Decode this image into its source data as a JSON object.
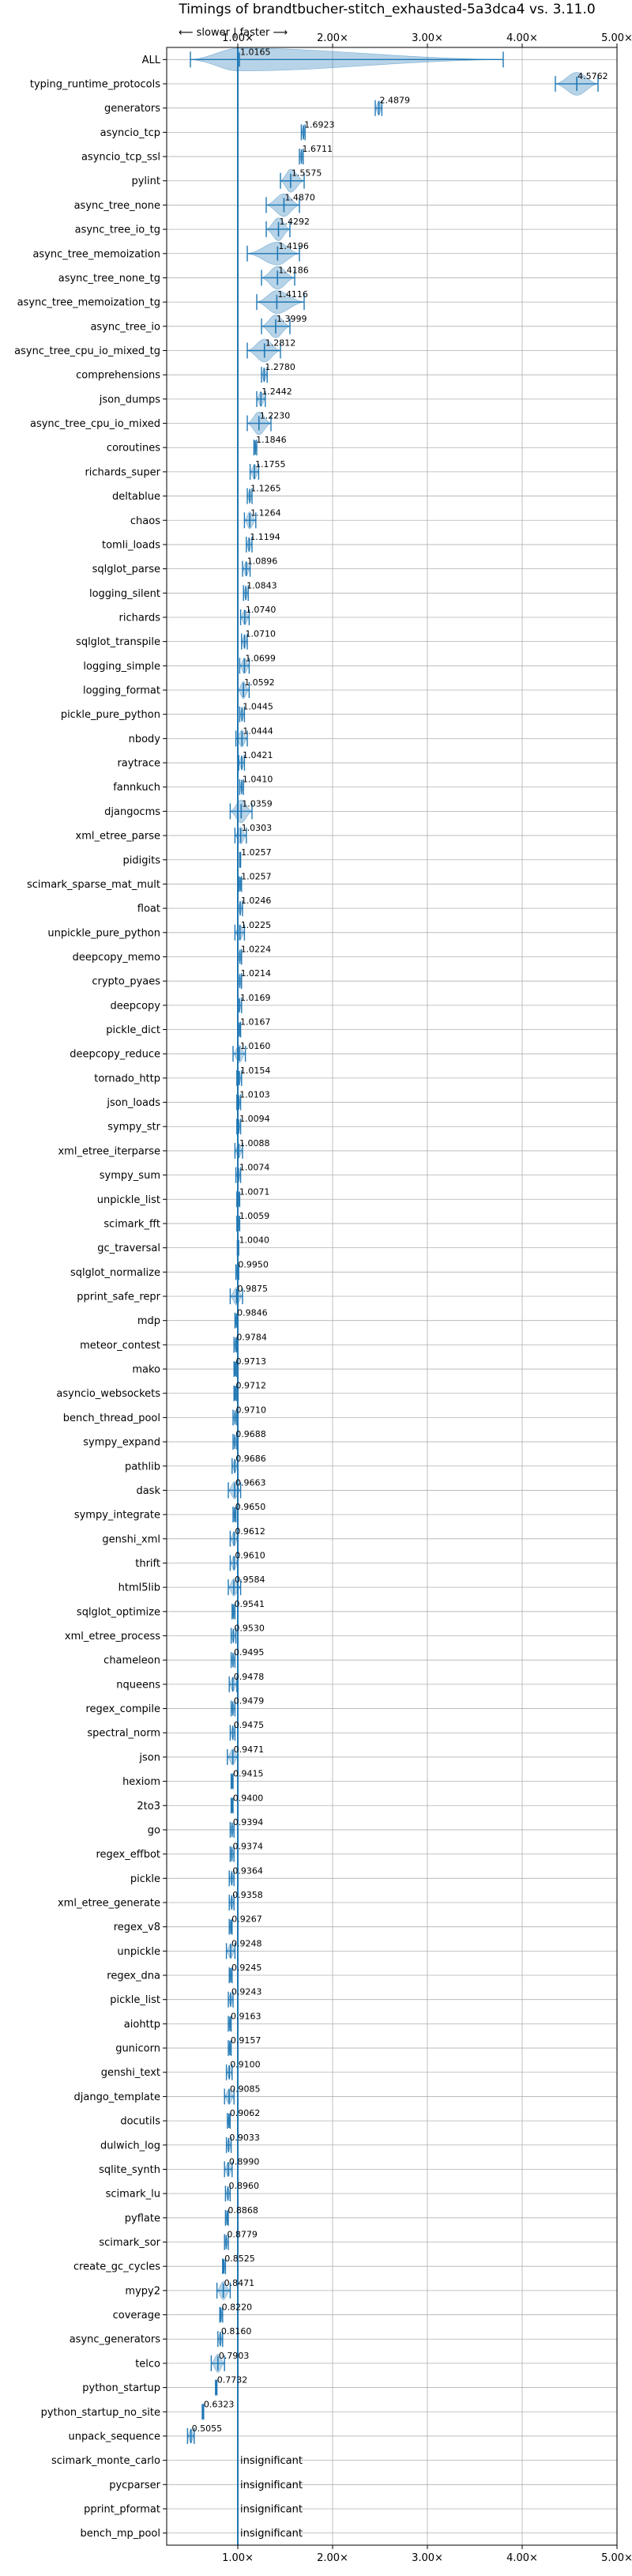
{
  "chart_data": {
    "type": "violin",
    "title": "Timings of brandtbucher-stitch_exhausted-5a3dca4 vs. 3.11.0",
    "direction_label": "⟵ slower | faster ⟶",
    "xlim": [
      0.25,
      5.0
    ],
    "x_ticks": [
      {
        "value": 1,
        "label": "1.00×"
      },
      {
        "value": 2,
        "label": "2.00×"
      },
      {
        "value": 3,
        "label": "3.00×"
      },
      {
        "value": 4,
        "label": "4.00×"
      },
      {
        "value": 5,
        "label": "5.00×"
      }
    ],
    "grid": true,
    "reference_line": 1.0,
    "insignificant_label": "insignificant",
    "series_color": "#1f77b4",
    "benchmarks": [
      {
        "name": "ALL",
        "value": 1.0165,
        "label": "1.0165",
        "spread": [
          0.5,
          3.8
        ]
      },
      {
        "name": "typing_runtime_protocols",
        "value": 4.5762,
        "label": "4.5762",
        "spread": [
          4.35,
          4.8
        ]
      },
      {
        "name": "generators",
        "value": 2.4879,
        "label": "2.4879",
        "spread": [
          2.45,
          2.52
        ]
      },
      {
        "name": "asyncio_tcp",
        "value": 1.6923,
        "label": "1.6923",
        "spread": [
          1.67,
          1.71
        ]
      },
      {
        "name": "asyncio_tcp_ssl",
        "value": 1.6711,
        "label": "1.6711",
        "spread": [
          1.65,
          1.69
        ]
      },
      {
        "name": "pylint",
        "value": 1.5575,
        "label": "1.5575",
        "spread": [
          1.45,
          1.7
        ]
      },
      {
        "name": "async_tree_none",
        "value": 1.487,
        "label": "1.4870",
        "spread": [
          1.3,
          1.65
        ]
      },
      {
        "name": "async_tree_io_tg",
        "value": 1.4292,
        "label": "1.4292",
        "spread": [
          1.3,
          1.55
        ]
      },
      {
        "name": "async_tree_memoization",
        "value": 1.4196,
        "label": "1.4196",
        "spread": [
          1.1,
          1.65
        ]
      },
      {
        "name": "async_tree_none_tg",
        "value": 1.4186,
        "label": "1.4186",
        "spread": [
          1.25,
          1.6
        ]
      },
      {
        "name": "async_tree_memoization_tg",
        "value": 1.4116,
        "label": "1.4116",
        "spread": [
          1.2,
          1.7
        ]
      },
      {
        "name": "async_tree_io",
        "value": 1.3999,
        "label": "1.3999",
        "spread": [
          1.25,
          1.55
        ]
      },
      {
        "name": "async_tree_cpu_io_mixed_tg",
        "value": 1.2812,
        "label": "1.2812",
        "spread": [
          1.1,
          1.45
        ]
      },
      {
        "name": "comprehensions",
        "value": 1.278,
        "label": "1.2780",
        "spread": [
          1.25,
          1.31
        ]
      },
      {
        "name": "json_dumps",
        "value": 1.2442,
        "label": "1.2442",
        "spread": [
          1.2,
          1.29
        ]
      },
      {
        "name": "async_tree_cpu_io_mixed",
        "value": 1.223,
        "label": "1.2230",
        "spread": [
          1.1,
          1.35
        ]
      },
      {
        "name": "coroutines",
        "value": 1.1846,
        "label": "1.1846",
        "spread": [
          1.17,
          1.2
        ]
      },
      {
        "name": "richards_super",
        "value": 1.1755,
        "label": "1.1755",
        "spread": [
          1.13,
          1.22
        ]
      },
      {
        "name": "deltablue",
        "value": 1.1265,
        "label": "1.1265",
        "spread": [
          1.1,
          1.15
        ]
      },
      {
        "name": "chaos",
        "value": 1.1264,
        "label": "1.1264",
        "spread": [
          1.07,
          1.19
        ]
      },
      {
        "name": "tomli_loads",
        "value": 1.1194,
        "label": "1.1194",
        "spread": [
          1.09,
          1.15
        ]
      },
      {
        "name": "sqlglot_parse",
        "value": 1.0896,
        "label": "1.0896",
        "spread": [
          1.05,
          1.13
        ]
      },
      {
        "name": "logging_silent",
        "value": 1.0843,
        "label": "1.0843",
        "spread": [
          1.06,
          1.11
        ]
      },
      {
        "name": "richards",
        "value": 1.074,
        "label": "1.0740",
        "spread": [
          1.03,
          1.12
        ]
      },
      {
        "name": "sqlglot_transpile",
        "value": 1.071,
        "label": "1.0710",
        "spread": [
          1.04,
          1.1
        ]
      },
      {
        "name": "logging_simple",
        "value": 1.0699,
        "label": "1.0699",
        "spread": [
          1.02,
          1.12
        ]
      },
      {
        "name": "logging_format",
        "value": 1.0592,
        "label": "1.0592",
        "spread": [
          1.0,
          1.12
        ]
      },
      {
        "name": "pickle_pure_python",
        "value": 1.0445,
        "label": "1.0445",
        "spread": [
          1.02,
          1.07
        ]
      },
      {
        "name": "nbody",
        "value": 1.0444,
        "label": "1.0444",
        "spread": [
          0.98,
          1.1
        ]
      },
      {
        "name": "raytrace",
        "value": 1.0421,
        "label": "1.0421",
        "spread": [
          1.01,
          1.07
        ]
      },
      {
        "name": "fannkuch",
        "value": 1.041,
        "label": "1.0410",
        "spread": [
          1.02,
          1.06
        ]
      },
      {
        "name": "djangocms",
        "value": 1.0359,
        "label": "1.0359",
        "spread": [
          0.92,
          1.15
        ]
      },
      {
        "name": "xml_etree_parse",
        "value": 1.0303,
        "label": "1.0303",
        "spread": [
          0.97,
          1.09
        ]
      },
      {
        "name": "pidigits",
        "value": 1.0257,
        "label": "1.0257",
        "spread": [
          1.02,
          1.03
        ]
      },
      {
        "name": "scimark_sparse_mat_mult",
        "value": 1.0257,
        "label": "1.0257",
        "spread": [
          1.01,
          1.04
        ]
      },
      {
        "name": "float",
        "value": 1.0246,
        "label": "1.0246",
        "spread": [
          1.0,
          1.05
        ]
      },
      {
        "name": "unpickle_pure_python",
        "value": 1.0225,
        "label": "1.0225",
        "spread": [
          0.97,
          1.07
        ]
      },
      {
        "name": "deepcopy_memo",
        "value": 1.0224,
        "label": "1.0224",
        "spread": [
          1.0,
          1.04
        ]
      },
      {
        "name": "crypto_pyaes",
        "value": 1.0214,
        "label": "1.0214",
        "spread": [
          1.0,
          1.04
        ]
      },
      {
        "name": "deepcopy",
        "value": 1.0169,
        "label": "1.0169",
        "spread": [
          1.0,
          1.04
        ]
      },
      {
        "name": "pickle_dict",
        "value": 1.0167,
        "label": "1.0167",
        "spread": [
          1.0,
          1.03
        ]
      },
      {
        "name": "deepcopy_reduce",
        "value": 1.016,
        "label": "1.0160",
        "spread": [
          0.95,
          1.08
        ]
      },
      {
        "name": "tornado_http",
        "value": 1.0154,
        "label": "1.0154",
        "spread": [
          0.99,
          1.04
        ]
      },
      {
        "name": "json_loads",
        "value": 1.0103,
        "label": "1.0103",
        "spread": [
          0.99,
          1.03
        ]
      },
      {
        "name": "sympy_str",
        "value": 1.0094,
        "label": "1.0094",
        "spread": [
          0.99,
          1.03
        ]
      },
      {
        "name": "xml_etree_iterparse",
        "value": 1.0088,
        "label": "1.0088",
        "spread": [
          0.97,
          1.05
        ]
      },
      {
        "name": "sympy_sum",
        "value": 1.0074,
        "label": "1.0074",
        "spread": [
          0.98,
          1.03
        ]
      },
      {
        "name": "unpickle_list",
        "value": 1.0071,
        "label": "1.0071",
        "spread": [
          0.99,
          1.02
        ]
      },
      {
        "name": "scimark_fft",
        "value": 1.0059,
        "label": "1.0059",
        "spread": [
          0.99,
          1.02
        ]
      },
      {
        "name": "gc_traversal",
        "value": 1.004,
        "label": "1.0040",
        "spread": [
          0.995,
          1.01
        ]
      },
      {
        "name": "sqlglot_normalize",
        "value": 0.995,
        "label": "0.9950",
        "spread": [
          0.98,
          1.01
        ]
      },
      {
        "name": "pprint_safe_repr",
        "value": 0.9875,
        "label": "0.9875",
        "spread": [
          0.92,
          1.05
        ]
      },
      {
        "name": "mdp",
        "value": 0.9846,
        "label": "0.9846",
        "spread": [
          0.97,
          1.0
        ]
      },
      {
        "name": "meteor_contest",
        "value": 0.9784,
        "label": "0.9784",
        "spread": [
          0.96,
          0.99
        ]
      },
      {
        "name": "mako",
        "value": 0.9713,
        "label": "0.9713",
        "spread": [
          0.96,
          0.985
        ]
      },
      {
        "name": "asyncio_websockets",
        "value": 0.9712,
        "label": "0.9712",
        "spread": [
          0.96,
          0.985
        ]
      },
      {
        "name": "bench_thread_pool",
        "value": 0.971,
        "label": "0.9710",
        "spread": [
          0.95,
          0.99
        ]
      },
      {
        "name": "sympy_expand",
        "value": 0.9688,
        "label": "0.9688",
        "spread": [
          0.95,
          0.99
        ]
      },
      {
        "name": "pathlib",
        "value": 0.9686,
        "label": "0.9686",
        "spread": [
          0.94,
          1.0
        ]
      },
      {
        "name": "dask",
        "value": 0.9663,
        "label": "0.9663",
        "spread": [
          0.9,
          1.03
        ]
      },
      {
        "name": "sympy_integrate",
        "value": 0.965,
        "label": "0.9650",
        "spread": [
          0.95,
          0.98
        ]
      },
      {
        "name": "genshi_xml",
        "value": 0.9612,
        "label": "0.9612",
        "spread": [
          0.92,
          1.0
        ]
      },
      {
        "name": "thrift",
        "value": 0.961,
        "label": "0.9610",
        "spread": [
          0.92,
          1.0
        ]
      },
      {
        "name": "html5lib",
        "value": 0.9584,
        "label": "0.9584",
        "spread": [
          0.9,
          1.03
        ]
      },
      {
        "name": "sqlglot_optimize",
        "value": 0.9541,
        "label": "0.9541",
        "spread": [
          0.94,
          0.97
        ]
      },
      {
        "name": "xml_etree_process",
        "value": 0.953,
        "label": "0.9530",
        "spread": [
          0.93,
          0.98
        ]
      },
      {
        "name": "chameleon",
        "value": 0.9495,
        "label": "0.9495",
        "spread": [
          0.93,
          0.97
        ]
      },
      {
        "name": "nqueens",
        "value": 0.9478,
        "label": "0.9478",
        "spread": [
          0.91,
          0.99
        ]
      },
      {
        "name": "regex_compile",
        "value": 0.9479,
        "label": "0.9479",
        "spread": [
          0.93,
          0.97
        ]
      },
      {
        "name": "spectral_norm",
        "value": 0.9475,
        "label": "0.9475",
        "spread": [
          0.92,
          0.97
        ]
      },
      {
        "name": "json",
        "value": 0.9471,
        "label": "0.9471",
        "spread": [
          0.89,
          1.0
        ]
      },
      {
        "name": "hexiom",
        "value": 0.9415,
        "label": "0.9415",
        "spread": [
          0.93,
          0.95
        ]
      },
      {
        "name": "2to3",
        "value": 0.94,
        "label": "0.9400",
        "spread": [
          0.93,
          0.95
        ]
      },
      {
        "name": "go",
        "value": 0.9394,
        "label": "0.9394",
        "spread": [
          0.92,
          0.96
        ]
      },
      {
        "name": "regex_effbot",
        "value": 0.9374,
        "label": "0.9374",
        "spread": [
          0.92,
          0.96
        ]
      },
      {
        "name": "pickle",
        "value": 0.9364,
        "label": "0.9364",
        "spread": [
          0.91,
          0.96
        ]
      },
      {
        "name": "xml_etree_generate",
        "value": 0.9358,
        "label": "0.9358",
        "spread": [
          0.91,
          0.96
        ]
      },
      {
        "name": "regex_v8",
        "value": 0.9267,
        "label": "0.9267",
        "spread": [
          0.91,
          0.94
        ]
      },
      {
        "name": "unpickle",
        "value": 0.9248,
        "label": "0.9248",
        "spread": [
          0.88,
          0.97
        ]
      },
      {
        "name": "regex_dna",
        "value": 0.9245,
        "label": "0.9245",
        "spread": [
          0.91,
          0.94
        ]
      },
      {
        "name": "pickle_list",
        "value": 0.9243,
        "label": "0.9243",
        "spread": [
          0.9,
          0.95
        ]
      },
      {
        "name": "aiohttp",
        "value": 0.9163,
        "label": "0.9163",
        "spread": [
          0.9,
          0.93
        ]
      },
      {
        "name": "gunicorn",
        "value": 0.9157,
        "label": "0.9157",
        "spread": [
          0.9,
          0.93
        ]
      },
      {
        "name": "genshi_text",
        "value": 0.91,
        "label": "0.9100",
        "spread": [
          0.88,
          0.94
        ]
      },
      {
        "name": "django_template",
        "value": 0.9085,
        "label": "0.9085",
        "spread": [
          0.86,
          0.96
        ]
      },
      {
        "name": "docutils",
        "value": 0.9062,
        "label": "0.9062",
        "spread": [
          0.89,
          0.92
        ]
      },
      {
        "name": "dulwich_log",
        "value": 0.9033,
        "label": "0.9033",
        "spread": [
          0.88,
          0.93
        ]
      },
      {
        "name": "sqlite_synth",
        "value": 0.899,
        "label": "0.8990",
        "spread": [
          0.86,
          0.94
        ]
      },
      {
        "name": "scimark_lu",
        "value": 0.896,
        "label": "0.8960",
        "spread": [
          0.87,
          0.92
        ]
      },
      {
        "name": "pyflate",
        "value": 0.8868,
        "label": "0.8868",
        "spread": [
          0.87,
          0.9
        ]
      },
      {
        "name": "scimark_sor",
        "value": 0.8779,
        "label": "0.8779",
        "spread": [
          0.86,
          0.9
        ]
      },
      {
        "name": "create_gc_cycles",
        "value": 0.8525,
        "label": "0.8525",
        "spread": [
          0.84,
          0.87
        ]
      },
      {
        "name": "mypy2",
        "value": 0.8471,
        "label": "0.8471",
        "spread": [
          0.78,
          0.92
        ]
      },
      {
        "name": "coverage",
        "value": 0.822,
        "label": "0.8220",
        "spread": [
          0.81,
          0.84
        ]
      },
      {
        "name": "async_generators",
        "value": 0.816,
        "label": "0.8160",
        "spread": [
          0.79,
          0.84
        ]
      },
      {
        "name": "telco",
        "value": 0.7903,
        "label": "0.7903",
        "spread": [
          0.72,
          0.86
        ]
      },
      {
        "name": "python_startup",
        "value": 0.7732,
        "label": "0.7732",
        "spread": [
          0.765,
          0.78
        ]
      },
      {
        "name": "python_startup_no_site",
        "value": 0.6323,
        "label": "0.6323",
        "spread": [
          0.625,
          0.64
        ]
      },
      {
        "name": "unpack_sequence",
        "value": 0.5055,
        "label": "0.5055",
        "spread": [
          0.47,
          0.54
        ]
      },
      {
        "name": "scimark_monte_carlo",
        "value": null,
        "label": "insignificant",
        "spread": null
      },
      {
        "name": "pycparser",
        "value": null,
        "label": "insignificant",
        "spread": null
      },
      {
        "name": "pprint_pformat",
        "value": null,
        "label": "insignificant",
        "spread": null
      },
      {
        "name": "bench_mp_pool",
        "value": null,
        "label": "insignificant",
        "spread": null
      }
    ]
  }
}
